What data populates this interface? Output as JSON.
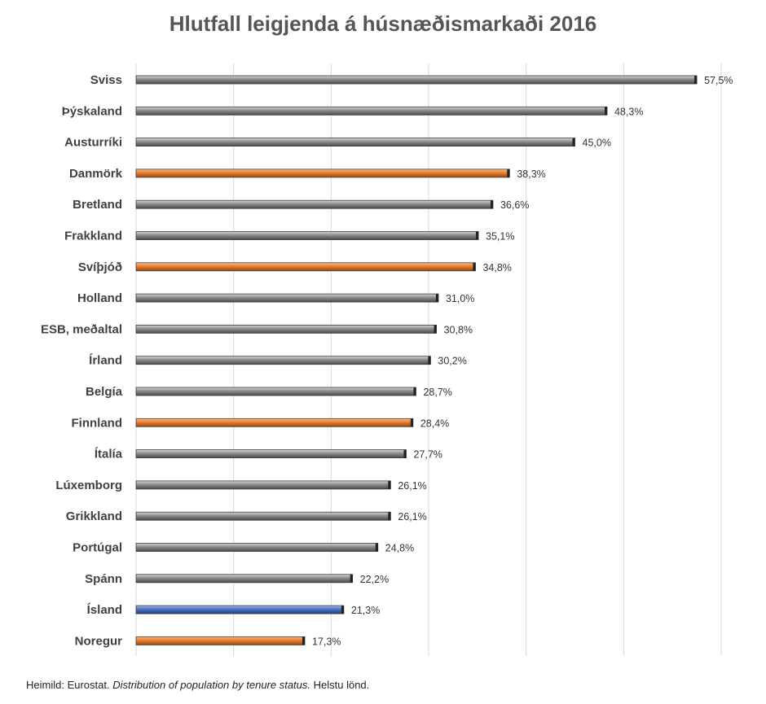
{
  "chart_data": {
    "type": "bar",
    "orientation": "horizontal",
    "title": "Hlutfall leigjenda á húsnæðismarkaði 2016",
    "categories": [
      "Sviss",
      "Þýskaland",
      "Austurríki",
      "Danmörk",
      "Bretland",
      "Frakkland",
      "Svíþjóð",
      "Holland",
      "ESB, meðaltal",
      "Írland",
      "Belgía",
      "Finnland",
      "Ítalía",
      "Lúxemborg",
      "Grikkland",
      "Portúgal",
      "Spánn",
      "Ísland",
      "Noregur"
    ],
    "values": [
      57.5,
      48.3,
      45.0,
      38.3,
      36.6,
      35.1,
      34.8,
      31.0,
      30.8,
      30.2,
      28.7,
      28.4,
      27.7,
      26.1,
      26.1,
      24.8,
      22.2,
      21.3,
      17.3
    ],
    "value_labels": [
      "57,5%",
      "48,3%",
      "45,0%",
      "38,3%",
      "36,6%",
      "35,1%",
      "34,8%",
      "31,0%",
      "30,8%",
      "30,2%",
      "28,7%",
      "28,4%",
      "27,7%",
      "26,1%",
      "26,1%",
      "24,8%",
      "22,2%",
      "21,3%",
      "17,3%"
    ],
    "bar_colors": [
      "#808080",
      "#808080",
      "#808080",
      "#e87d2f",
      "#808080",
      "#808080",
      "#e87d2f",
      "#808080",
      "#808080",
      "#808080",
      "#808080",
      "#e87d2f",
      "#808080",
      "#808080",
      "#808080",
      "#808080",
      "#808080",
      "#4a72c4",
      "#e87d2f"
    ],
    "xlim": [
      0,
      60
    ],
    "x_gridlines": [
      10,
      20,
      30,
      40,
      50,
      60
    ],
    "grid": true,
    "xlabel": "",
    "ylabel": ""
  },
  "footnote": {
    "prefix": "Heimild: Eurostat. ",
    "italic": "Distribution of population by tenure status.",
    "suffix": " Helstu lönd."
  },
  "colors": {
    "gray": "#808080",
    "orange": "#e87d2f",
    "blue": "#4a72c4",
    "grid": "#d9d9d9"
  }
}
